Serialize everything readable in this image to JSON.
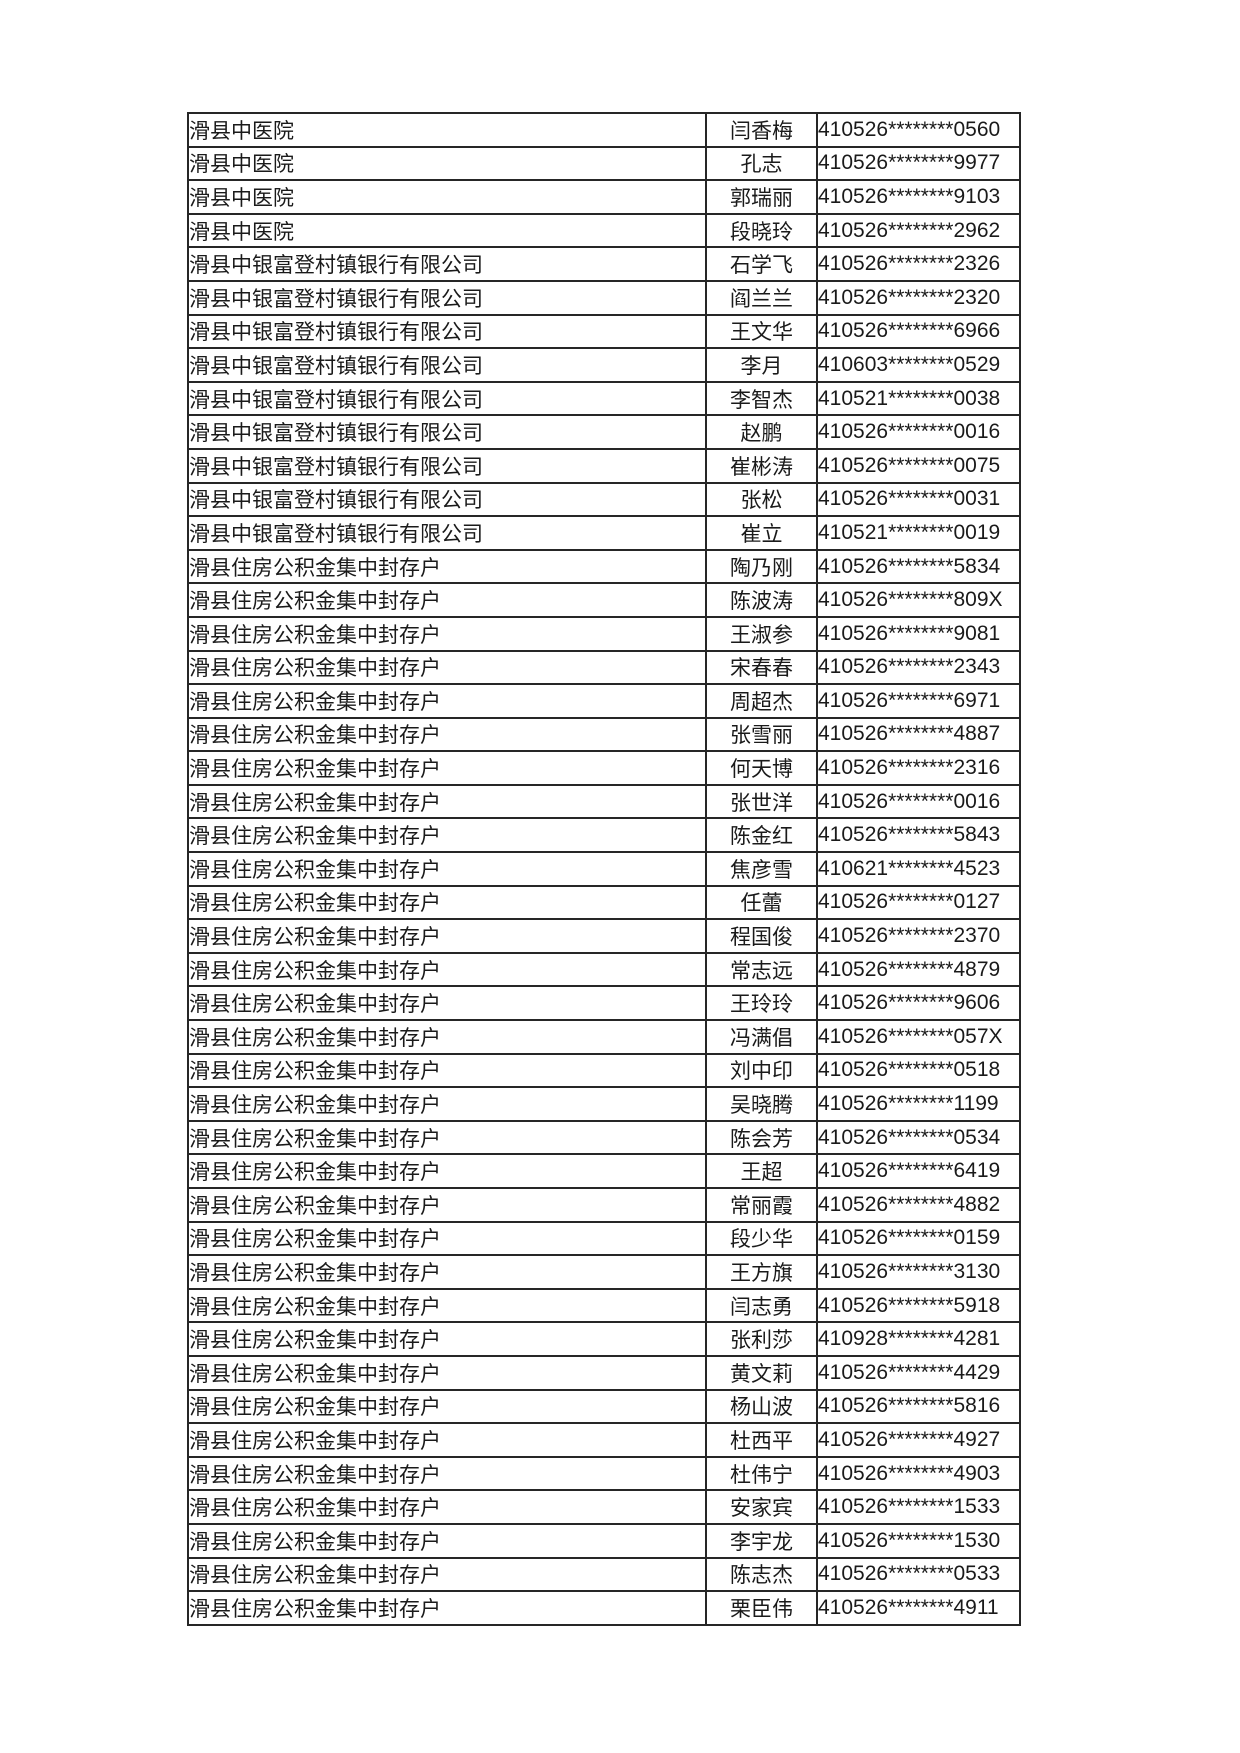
{
  "page": {
    "background": "#ffffff",
    "text_color": "#1a1a1a",
    "border_color": "#262626"
  },
  "table": {
    "rows": [
      [
        "滑县中医院",
        "闫香梅",
        "410526********0560"
      ],
      [
        "滑县中医院",
        "孔志",
        "410526********9977"
      ],
      [
        "滑县中医院",
        "郭瑞丽",
        "410526********9103"
      ],
      [
        "滑县中医院",
        "段晓玲",
        "410526********2962"
      ],
      [
        "滑县中银富登村镇银行有限公司",
        "石学飞",
        "410526********2326"
      ],
      [
        "滑县中银富登村镇银行有限公司",
        "阎兰兰",
        "410526********2320"
      ],
      [
        "滑县中银富登村镇银行有限公司",
        "王文华",
        "410526********6966"
      ],
      [
        "滑县中银富登村镇银行有限公司",
        "李月",
        "410603********0529"
      ],
      [
        "滑县中银富登村镇银行有限公司",
        "李智杰",
        "410521********0038"
      ],
      [
        "滑县中银富登村镇银行有限公司",
        "赵鹏",
        "410526********0016"
      ],
      [
        "滑县中银富登村镇银行有限公司",
        "崔彬涛",
        "410526********0075"
      ],
      [
        "滑县中银富登村镇银行有限公司",
        "张松",
        "410526********0031"
      ],
      [
        "滑县中银富登村镇银行有限公司",
        "崔立",
        "410521********0019"
      ],
      [
        "滑县住房公积金集中封存户",
        "陶乃刚",
        "410526********5834"
      ],
      [
        "滑县住房公积金集中封存户",
        "陈波涛",
        "410526********809X"
      ],
      [
        "滑县住房公积金集中封存户",
        "王淑参",
        "410526********9081"
      ],
      [
        "滑县住房公积金集中封存户",
        "宋春春",
        "410526********2343"
      ],
      [
        "滑县住房公积金集中封存户",
        "周超杰",
        "410526********6971"
      ],
      [
        "滑县住房公积金集中封存户",
        "张雪丽",
        "410526********4887"
      ],
      [
        "滑县住房公积金集中封存户",
        "何天博",
        "410526********2316"
      ],
      [
        "滑县住房公积金集中封存户",
        "张世洋",
        "410526********0016"
      ],
      [
        "滑县住房公积金集中封存户",
        "陈金红",
        "410526********5843"
      ],
      [
        "滑县住房公积金集中封存户",
        "焦彦雪",
        "410621********4523"
      ],
      [
        "滑县住房公积金集中封存户",
        "任蕾",
        "410526********0127"
      ],
      [
        "滑县住房公积金集中封存户",
        "程国俊",
        "410526********2370"
      ],
      [
        "滑县住房公积金集中封存户",
        "常志远",
        "410526********4879"
      ],
      [
        "滑县住房公积金集中封存户",
        "王玲玲",
        "410526********9606"
      ],
      [
        "滑县住房公积金集中封存户",
        "冯满倡",
        "410526********057X"
      ],
      [
        "滑县住房公积金集中封存户",
        "刘中印",
        "410526********0518"
      ],
      [
        "滑县住房公积金集中封存户",
        "吴晓腾",
        "410526********1199"
      ],
      [
        "滑县住房公积金集中封存户",
        "陈会芳",
        "410526********0534"
      ],
      [
        "滑县住房公积金集中封存户",
        "王超",
        "410526********6419"
      ],
      [
        "滑县住房公积金集中封存户",
        "常丽霞",
        "410526********4882"
      ],
      [
        "滑县住房公积金集中封存户",
        "段少华",
        "410526********0159"
      ],
      [
        "滑县住房公积金集中封存户",
        "王方旗",
        "410526********3130"
      ],
      [
        "滑县住房公积金集中封存户",
        "闫志勇",
        "410526********5918"
      ],
      [
        "滑县住房公积金集中封存户",
        "张利莎",
        "410928********4281"
      ],
      [
        "滑县住房公积金集中封存户",
        "黄文莉",
        "410526********4429"
      ],
      [
        "滑县住房公积金集中封存户",
        "杨山波",
        "410526********5816"
      ],
      [
        "滑县住房公积金集中封存户",
        "杜西平",
        "410526********4927"
      ],
      [
        "滑县住房公积金集中封存户",
        "杜伟宁",
        "410526********4903"
      ],
      [
        "滑县住房公积金集中封存户",
        "安家宾",
        "410526********1533"
      ],
      [
        "滑县住房公积金集中封存户",
        "李宇龙",
        "410526********1530"
      ],
      [
        "滑县住房公积金集中封存户",
        "陈志杰",
        "410526********0533"
      ],
      [
        "滑县住房公积金集中封存户",
        "栗臣伟",
        "410526********4911"
      ]
    ]
  }
}
